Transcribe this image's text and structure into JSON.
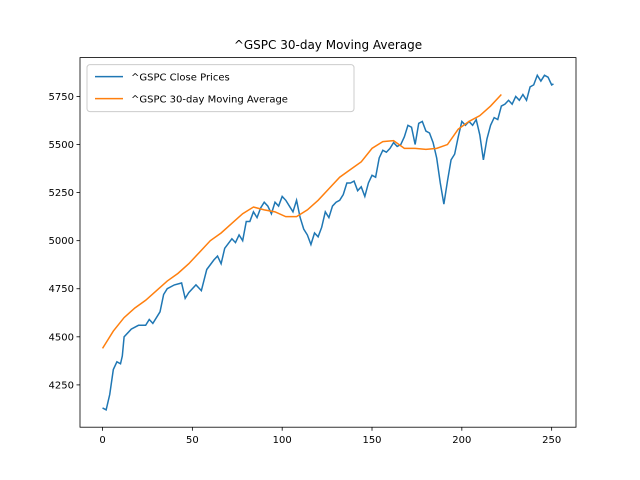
{
  "chart_data": {
    "type": "line",
    "title": "^GSPC 30-day Moving Average",
    "xlim": [
      -12.55,
      263.55
    ],
    "xticks": [
      0,
      50,
      100,
      150,
      200,
      250
    ],
    "ylim": [
      4030,
      5952
    ],
    "yticks": [
      4250,
      4500,
      4750,
      5000,
      5250,
      5500,
      5750
    ],
    "grid": false,
    "legend": "upper left",
    "series": [
      {
        "name": "^GSPC Close Prices",
        "color": "#1f77b4",
        "x": [
          0,
          2,
          4,
          6,
          8,
          10,
          11,
          12,
          16,
          20,
          24,
          26,
          28,
          32,
          34,
          36,
          40,
          44,
          46,
          48,
          52,
          55,
          58,
          62,
          64,
          66,
          68,
          72,
          74,
          76,
          78,
          80,
          82,
          84,
          86,
          88,
          90,
          92,
          94,
          96,
          98,
          100,
          102,
          104,
          106,
          108,
          110,
          112,
          114,
          116,
          118,
          120,
          122,
          124,
          126,
          128,
          130,
          132,
          134,
          136,
          138,
          140,
          142,
          144,
          146,
          148,
          150,
          152,
          154,
          156,
          158,
          160,
          162,
          164,
          166,
          168,
          170,
          172,
          174,
          176,
          178,
          180,
          182,
          184,
          186,
          188,
          190,
          192,
          194,
          196,
          198,
          200,
          202,
          204,
          206,
          208,
          210,
          212,
          214,
          216,
          218,
          220,
          222,
          224,
          226,
          228,
          230,
          232,
          234,
          236,
          238,
          240,
          242,
          244,
          246,
          248,
          250,
          251
        ],
        "values": [
          4130,
          4120,
          4200,
          4330,
          4370,
          4360,
          4400,
          4500,
          4540,
          4560,
          4560,
          4590,
          4570,
          4630,
          4720,
          4750,
          4770,
          4780,
          4700,
          4730,
          4770,
          4740,
          4850,
          4900,
          4920,
          4880,
          4960,
          5010,
          4990,
          5030,
          5000,
          5100,
          5100,
          5150,
          5120,
          5170,
          5200,
          5180,
          5140,
          5200,
          5180,
          5230,
          5210,
          5180,
          5150,
          5210,
          5120,
          5060,
          5030,
          4980,
          5040,
          5020,
          5070,
          5150,
          5120,
          5180,
          5200,
          5210,
          5240,
          5300,
          5300,
          5310,
          5260,
          5280,
          5230,
          5300,
          5340,
          5330,
          5430,
          5470,
          5460,
          5480,
          5510,
          5490,
          5500,
          5540,
          5600,
          5590,
          5500,
          5610,
          5620,
          5570,
          5560,
          5510,
          5430,
          5300,
          5190,
          5310,
          5420,
          5450,
          5540,
          5620,
          5600,
          5620,
          5600,
          5630,
          5550,
          5420,
          5530,
          5600,
          5640,
          5630,
          5700,
          5710,
          5730,
          5710,
          5750,
          5730,
          5760,
          5730,
          5800,
          5810,
          5860,
          5830,
          5860,
          5850,
          5810,
          5815
        ]
      },
      {
        "name": "^GSPC 30-day Moving Average",
        "color": "#ff7f0e",
        "x": [
          0,
          6,
          12,
          18,
          24,
          30,
          36,
          42,
          48,
          54,
          60,
          66,
          72,
          78,
          84,
          90,
          96,
          102,
          108,
          114,
          120,
          126,
          132,
          138,
          144,
          150,
          156,
          162,
          168,
          174,
          180,
          186,
          192,
          198,
          204,
          210,
          216,
          222
        ],
        "values": [
          4440,
          4530,
          4600,
          4650,
          4690,
          4740,
          4790,
          4830,
          4880,
          4940,
          5000,
          5040,
          5090,
          5140,
          5175,
          5160,
          5150,
          5125,
          5125,
          5160,
          5210,
          5270,
          5330,
          5370,
          5410,
          5480,
          5515,
          5520,
          5480,
          5480,
          5475,
          5480,
          5500,
          5580,
          5620,
          5650,
          5700,
          5760
        ]
      }
    ]
  }
}
